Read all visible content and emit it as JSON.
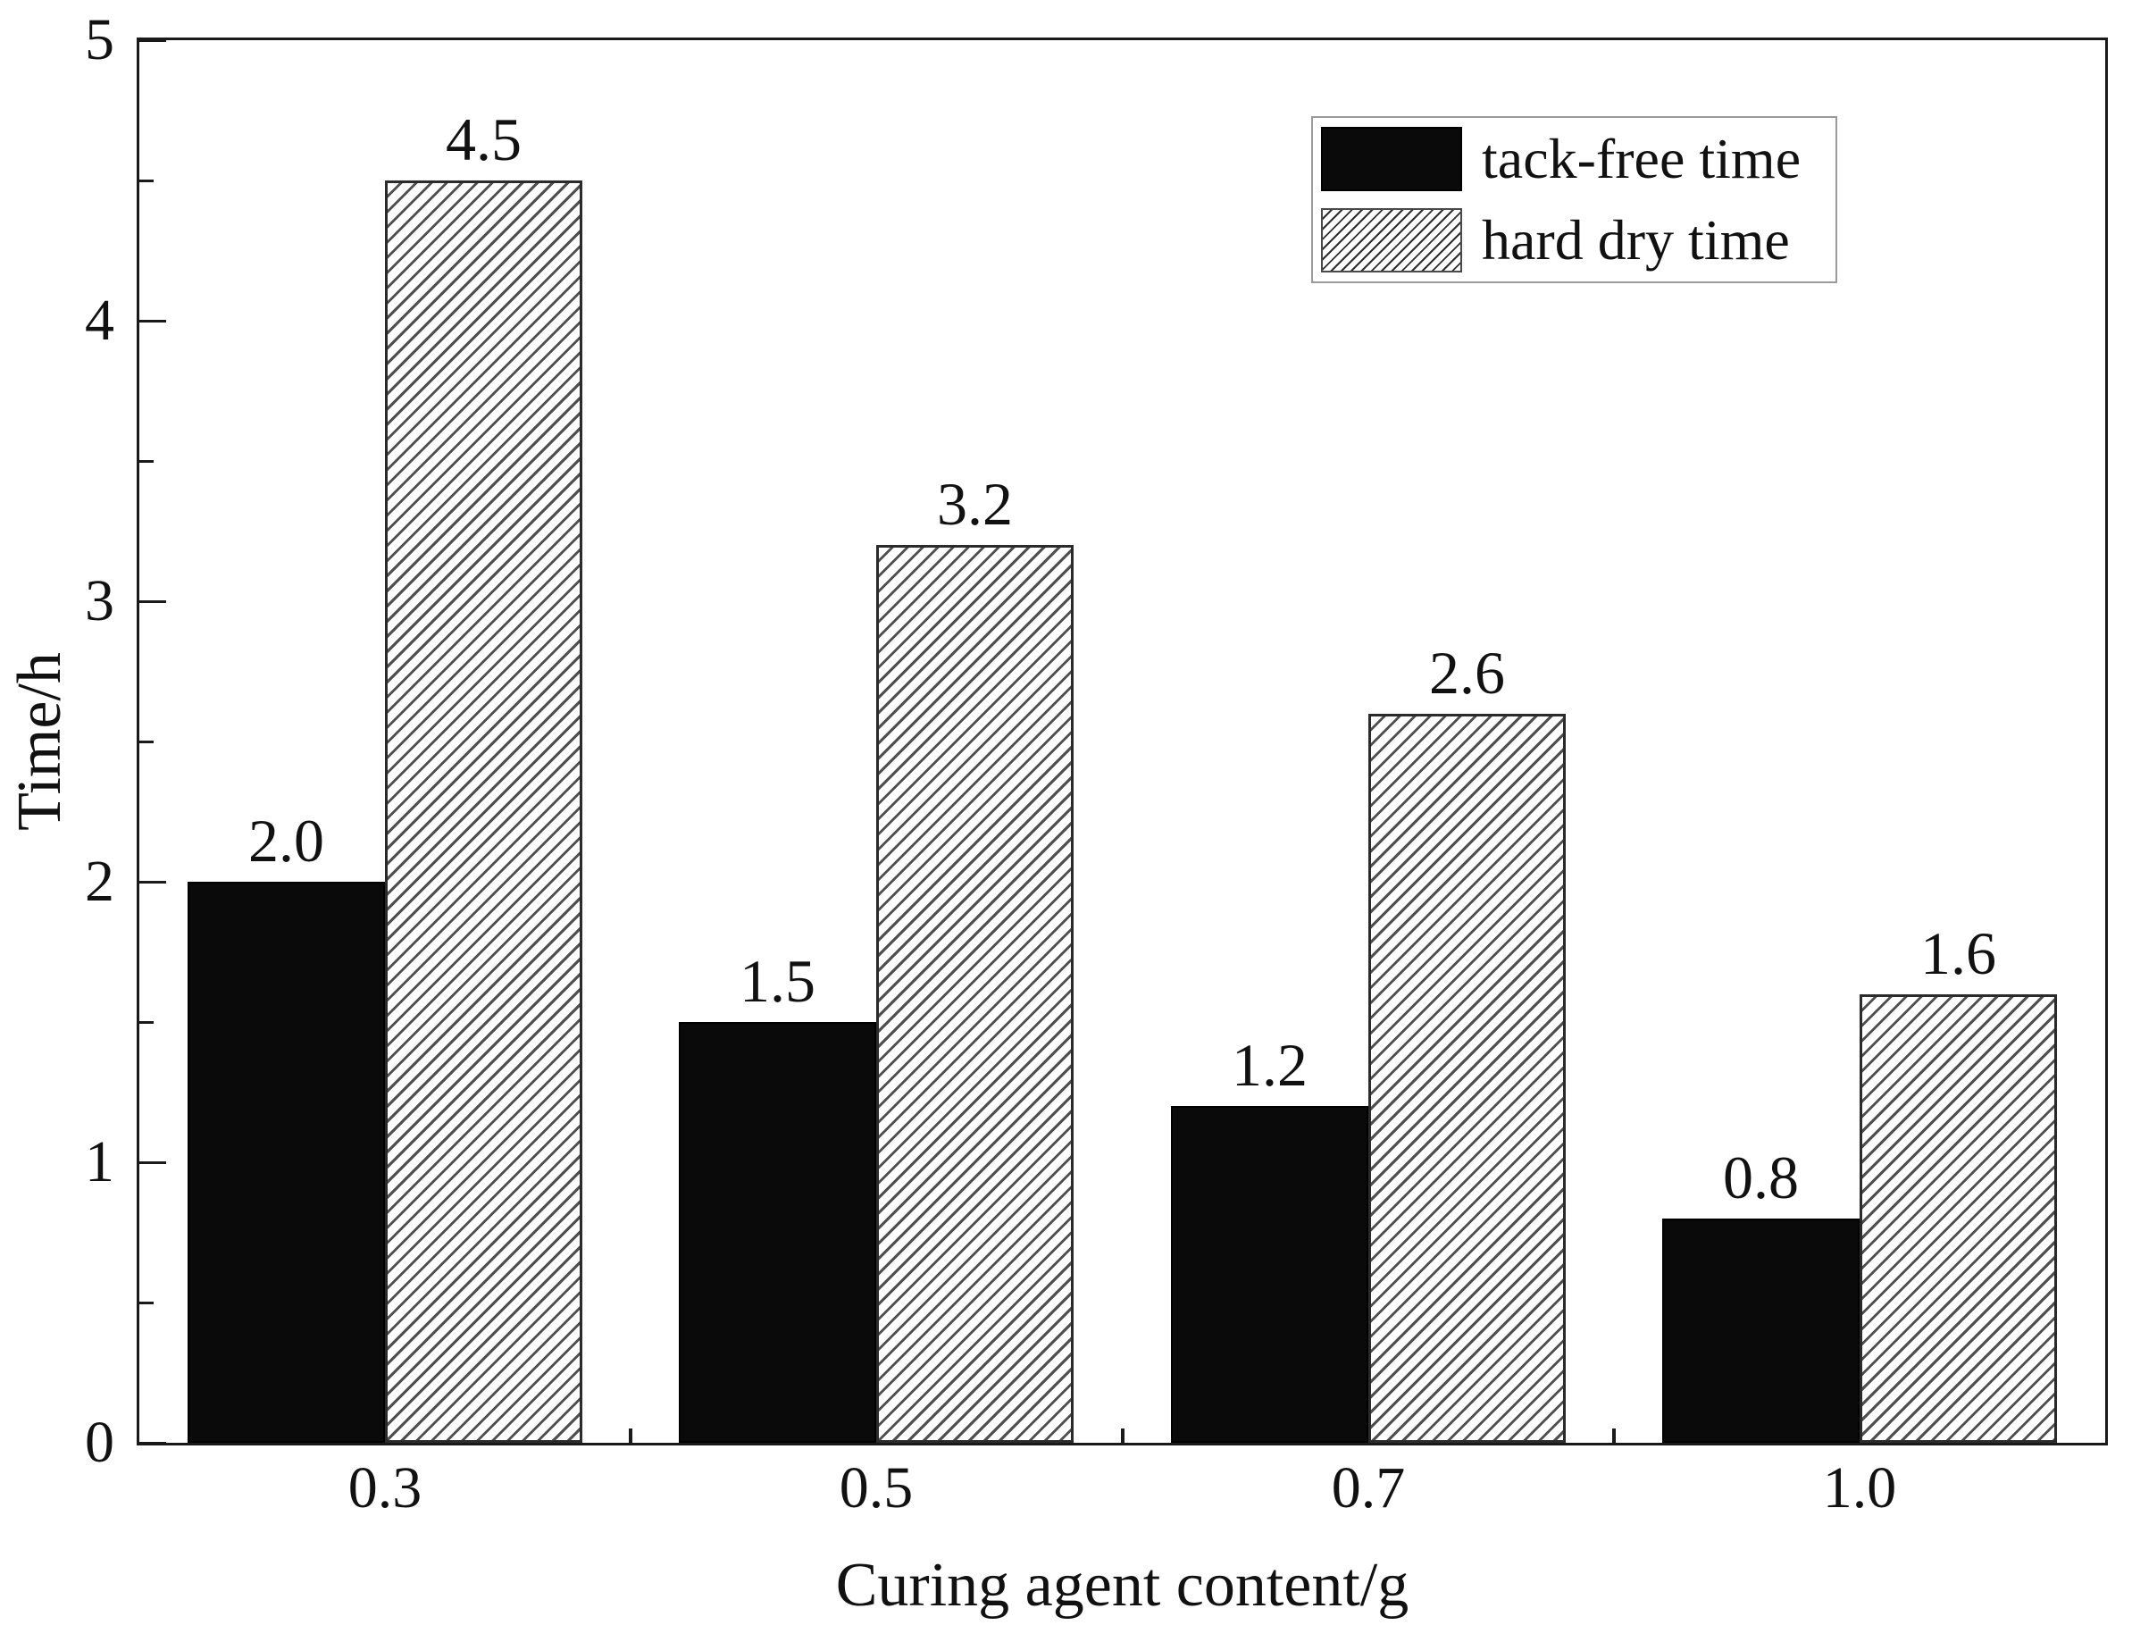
{
  "chart_data": {
    "type": "bar",
    "title": "",
    "xlabel": "Curing agent content/g",
    "ylabel": "Time/h",
    "categories": [
      "0.3",
      "0.5",
      "0.7",
      "1.0"
    ],
    "series": [
      {
        "name": "tack-free time",
        "style": "solid",
        "values": [
          2.0,
          1.5,
          1.2,
          0.8
        ]
      },
      {
        "name": "hard dry time",
        "style": "hatch",
        "values": [
          4.5,
          3.2,
          2.6,
          1.6
        ]
      }
    ],
    "bar_value_labels": [
      [
        "2.0",
        "1.5",
        "1.2",
        "0.8"
      ],
      [
        "4.5",
        "3.2",
        "2.6",
        "1.6"
      ]
    ],
    "ylim": [
      0,
      5
    ],
    "ytick_labels": [
      "0",
      "1",
      "2",
      "3",
      "4",
      "5"
    ],
    "ytick_minor_step": 0.5,
    "grid": false,
    "legend_position": "top-right",
    "colors": {
      "bar_fill": "#0a0a0a",
      "hatch_line": "#4f4f4f",
      "axis": "#1a1a1a",
      "text": "#111111",
      "background": "#ffffff",
      "legend_border": "#9a9a9a"
    }
  },
  "legend": {
    "items": [
      {
        "label": "tack-free time",
        "swatch": "solid"
      },
      {
        "label": "hard dry time",
        "swatch": "hatch"
      }
    ]
  }
}
